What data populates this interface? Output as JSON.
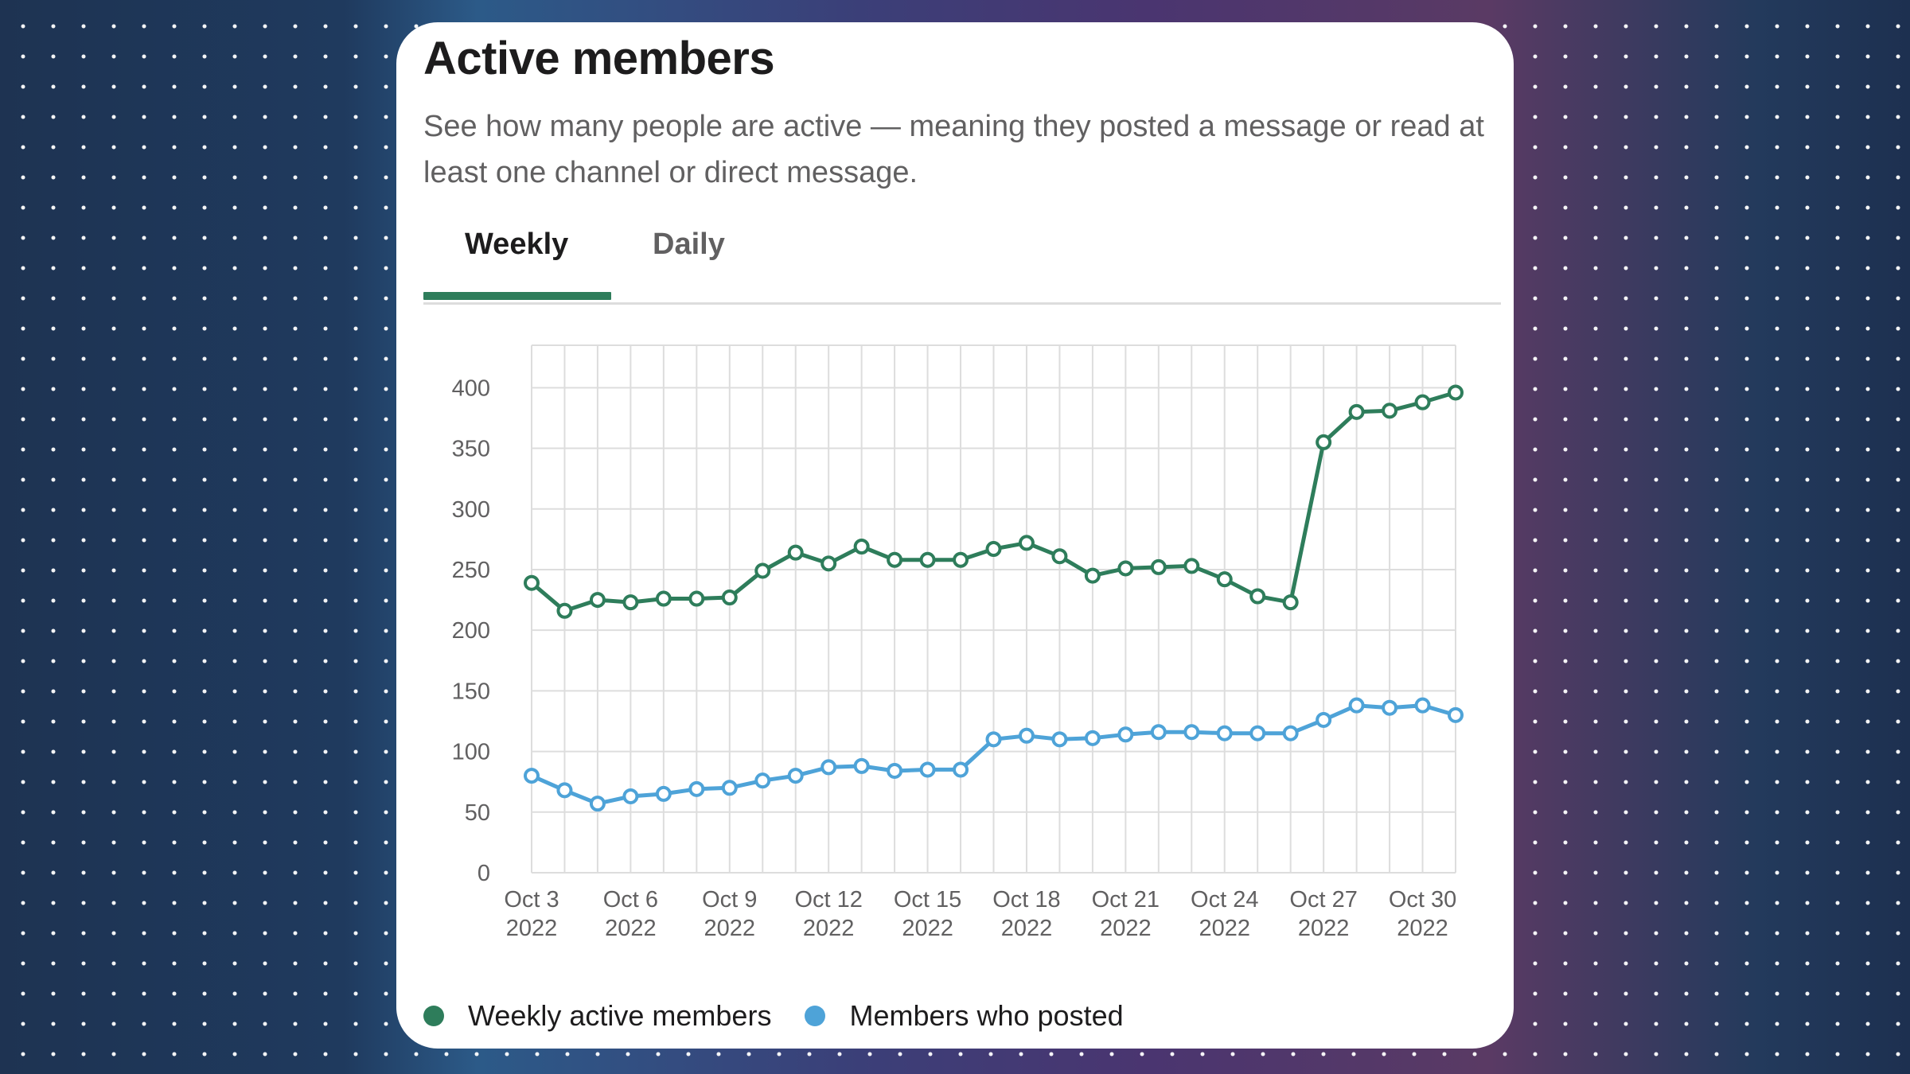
{
  "page": {
    "title": "Active members",
    "subtitle": "See how many people are active — meaning they posted a message or read at least one channel or direct message."
  },
  "tabs": [
    {
      "label": "Weekly",
      "active": true
    },
    {
      "label": "Daily",
      "active": false
    }
  ],
  "colors": {
    "accent": "#2e7d5b",
    "series_weekly": "#2e7d5b",
    "series_posted": "#4ea3d8",
    "grid": "#dddddd"
  },
  "chart_data": {
    "type": "line",
    "title": "",
    "xlabel": "",
    "ylabel": "",
    "x": [
      "Oct 3 2022",
      "Oct 4 2022",
      "Oct 5 2022",
      "Oct 6 2022",
      "Oct 7 2022",
      "Oct 8 2022",
      "Oct 9 2022",
      "Oct 10 2022",
      "Oct 11 2022",
      "Oct 12 2022",
      "Oct 13 2022",
      "Oct 14 2022",
      "Oct 15 2022",
      "Oct 16 2022",
      "Oct 17 2022",
      "Oct 18 2022",
      "Oct 19 2022",
      "Oct 20 2022",
      "Oct 21 2022",
      "Oct 22 2022",
      "Oct 23 2022",
      "Oct 24 2022",
      "Oct 25 2022",
      "Oct 26 2022",
      "Oct 27 2022",
      "Oct 28 2022",
      "Oct 29 2022",
      "Oct 30 2022",
      "Oct 31 2022"
    ],
    "x_ticks": [
      {
        "line1": "Oct 3",
        "line2": "2022",
        "index": 0
      },
      {
        "line1": "Oct 6",
        "line2": "2022",
        "index": 3
      },
      {
        "line1": "Oct 9",
        "line2": "2022",
        "index": 6
      },
      {
        "line1": "Oct 12",
        "line2": "2022",
        "index": 9
      },
      {
        "line1": "Oct 15",
        "line2": "2022",
        "index": 12
      },
      {
        "line1": "Oct 18",
        "line2": "2022",
        "index": 15
      },
      {
        "line1": "Oct 21",
        "line2": "2022",
        "index": 18
      },
      {
        "line1": "Oct 24",
        "line2": "2022",
        "index": 21
      },
      {
        "line1": "Oct 27",
        "line2": "2022",
        "index": 24
      },
      {
        "line1": "Oct 30",
        "line2": "2022",
        "index": 27
      }
    ],
    "y_ticks": [
      0,
      50,
      100,
      150,
      200,
      250,
      300,
      350,
      400
    ],
    "ylim": [
      0,
      435
    ],
    "grid": true,
    "legend_placement": "bottom-left",
    "series": [
      {
        "name": "Weekly active members",
        "color": "#2e7d5b",
        "values": [
          239,
          216,
          225,
          223,
          226,
          226,
          227,
          249,
          264,
          255,
          269,
          258,
          258,
          258,
          267,
          272,
          261,
          245,
          251,
          252,
          253,
          242,
          228,
          223,
          355,
          380,
          381,
          388,
          396
        ]
      },
      {
        "name": "Members who posted",
        "color": "#4ea3d8",
        "values": [
          80,
          68,
          57,
          63,
          65,
          69,
          70,
          76,
          80,
          87,
          88,
          84,
          85,
          85,
          110,
          113,
          110,
          111,
          114,
          116,
          116,
          115,
          115,
          115,
          126,
          138,
          136,
          138,
          130
        ]
      }
    ]
  }
}
